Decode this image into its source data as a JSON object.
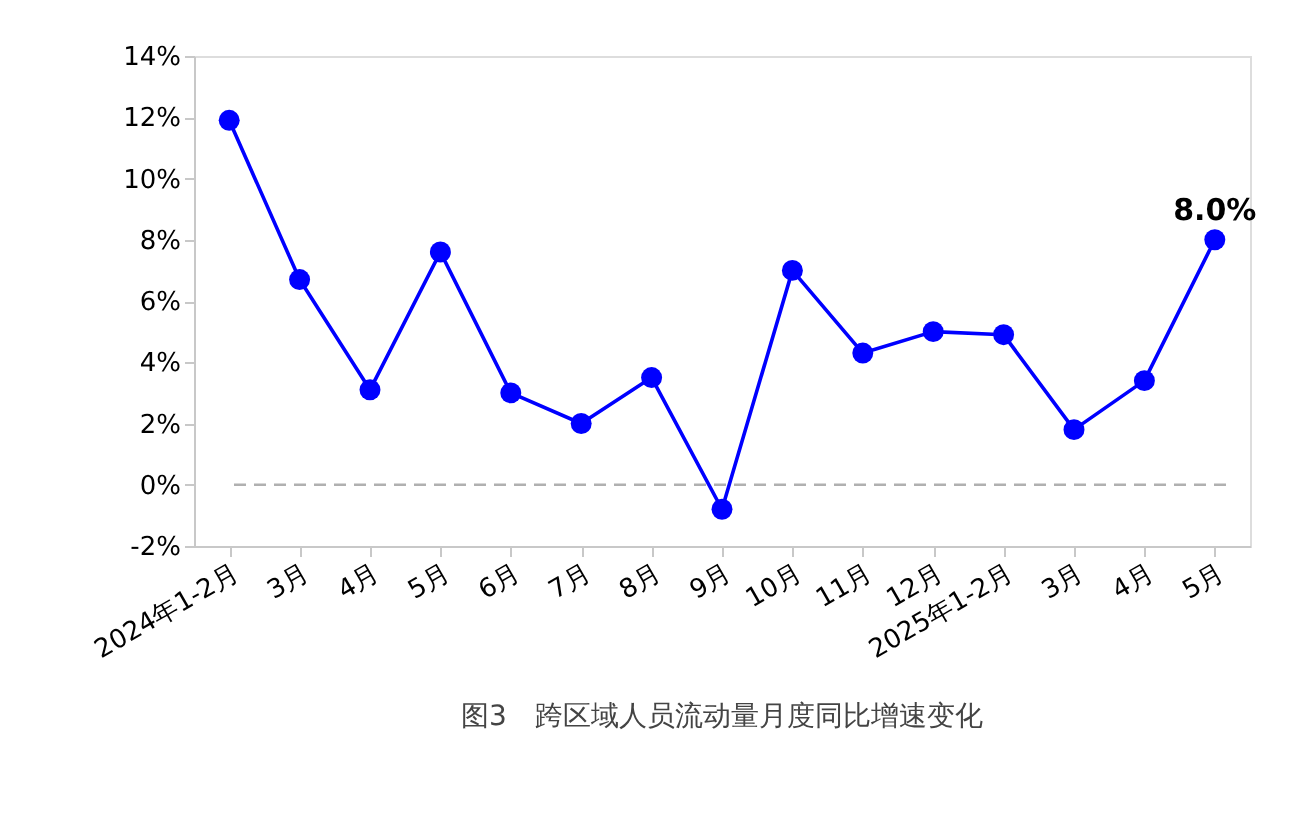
{
  "chart_data": {
    "type": "line",
    "title": "图3　跨区域人员流动量月度同比增速变化",
    "categories": [
      "2024年1-2月",
      "3月",
      "4月",
      "5月",
      "6月",
      "7月",
      "8月",
      "9月",
      "10月",
      "11月",
      "12月",
      "2025年1-2月",
      "3月",
      "4月",
      "5月"
    ],
    "series": [
      {
        "color": "#0000ff",
        "values": [
          11.9,
          6.7,
          3.1,
          7.6,
          3.0,
          2.0,
          3.5,
          -0.8,
          7.0,
          4.3,
          5.0,
          4.9,
          1.8,
          3.4,
          8.0
        ],
        "value_labels": [
          null,
          null,
          null,
          null,
          null,
          null,
          null,
          null,
          null,
          null,
          null,
          null,
          null,
          null,
          "8.0%"
        ]
      }
    ],
    "ylim": [
      -2,
      14
    ],
    "yticks": [
      {
        "value": -2,
        "label": "-2%"
      },
      {
        "value": 0,
        "label": "0%"
      },
      {
        "value": 2,
        "label": "2%"
      },
      {
        "value": 4,
        "label": "4%"
      },
      {
        "value": 6,
        "label": "6%"
      },
      {
        "value": 8,
        "label": "8%"
      },
      {
        "value": 10,
        "label": "10%"
      },
      {
        "value": 12,
        "label": "12%"
      },
      {
        "value": 14,
        "label": "14%"
      }
    ],
    "ref_lines": [
      {
        "axis": "y",
        "value": 0,
        "color": "#b0b0b0",
        "line_style": "dashed"
      }
    ],
    "marker": "circle",
    "line_style": "solid",
    "grid": false
  }
}
